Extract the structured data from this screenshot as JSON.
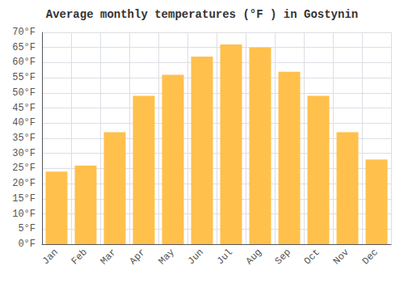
{
  "chart_data": {
    "type": "bar",
    "title": "Average monthly temperatures (°F ) in Gostynin",
    "categories": [
      "Jan",
      "Feb",
      "Mar",
      "Apr",
      "May",
      "Jun",
      "Jul",
      "Aug",
      "Sep",
      "Oct",
      "Nov",
      "Dec"
    ],
    "values": [
      24,
      26,
      37,
      49,
      56,
      62,
      66,
      65,
      57,
      49,
      37,
      28
    ],
    "color": "#FFC04C",
    "ylim": [
      0,
      70
    ],
    "yticks": [
      {
        "value": 0,
        "label": "0°F"
      },
      {
        "value": 5,
        "label": "5°F"
      },
      {
        "value": 10,
        "label": "10°F"
      },
      {
        "value": 15,
        "label": "15°F"
      },
      {
        "value": 20,
        "label": "20°F"
      },
      {
        "value": 25,
        "label": "25°F"
      },
      {
        "value": 30,
        "label": "30°F"
      },
      {
        "value": 35,
        "label": "35°F"
      },
      {
        "value": 40,
        "label": "40°F"
      },
      {
        "value": 45,
        "label": "45°F"
      },
      {
        "value": 50,
        "label": "50°F"
      },
      {
        "value": 55,
        "label": "55°F"
      },
      {
        "value": 60,
        "label": "60°F"
      },
      {
        "value": 65,
        "label": "65°F"
      },
      {
        "value": 70,
        "label": "70°F"
      }
    ],
    "grid": true
  }
}
